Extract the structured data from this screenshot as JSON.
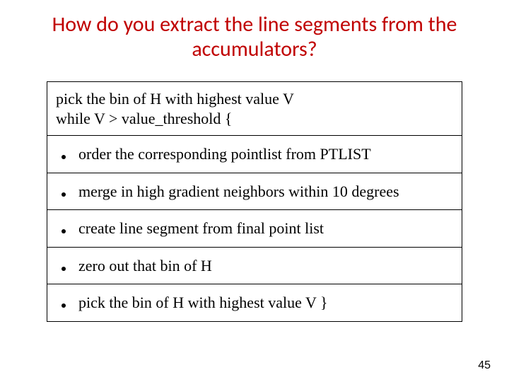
{
  "title_color": "#c00000",
  "title_line1": "How do you extract the line segments from the",
  "title_line2": "accumulators?",
  "header_line1": "pick the bin of H with highest value V",
  "header_line2": "while V > value_threshold {",
  "bullets": [
    "order the corresponding pointlist from PTLIST",
    "merge in high gradient neighbors within 10 degrees",
    "create line segment from final point list",
    "zero out that bin of H",
    "pick the bin of H with highest value V }"
  ],
  "page_number": "45"
}
